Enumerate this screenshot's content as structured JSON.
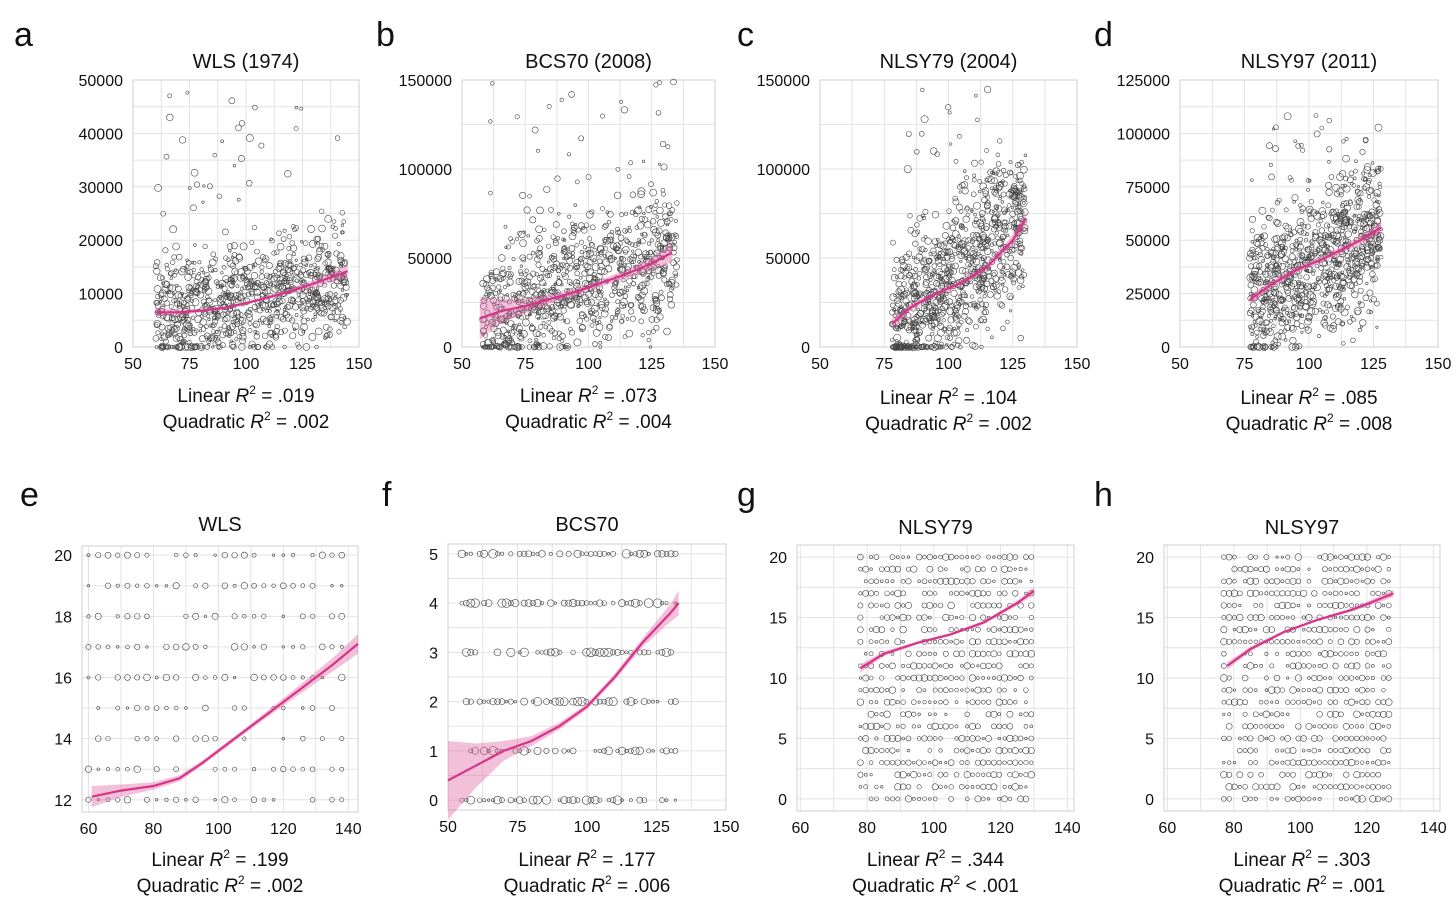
{
  "figure": {
    "panels": [
      {
        "letter": "a",
        "title": "WLS (1974)",
        "linear": {
          "label": "Linear",
          "sym": "R",
          "sup": "2",
          "eq": " = .019"
        },
        "quadratic": {
          "label": "Quadratic",
          "sym": "R",
          "sup": "2",
          "eq": " = .002"
        }
      },
      {
        "letter": "b",
        "title": "BCS70 (2008)",
        "linear": {
          "label": "Linear",
          "sym": "R",
          "sup": "2",
          "eq": " = .073"
        },
        "quadratic": {
          "label": "Quadratic",
          "sym": "R",
          "sup": "2",
          "eq": " = .004"
        }
      },
      {
        "letter": "c",
        "title": "NLSY79 (2004)",
        "linear": {
          "label": "Linear",
          "sym": "R",
          "sup": "2",
          "eq": " = .104"
        },
        "quadratic": {
          "label": "Quadratic",
          "sym": "R",
          "sup": "2",
          "eq": " = .002"
        }
      },
      {
        "letter": "d",
        "title": "NLSY97 (2011)",
        "linear": {
          "label": "Linear",
          "sym": "R",
          "sup": "2",
          "eq": " = .085"
        },
        "quadratic": {
          "label": "Quadratic",
          "sym": "R",
          "sup": "2",
          "eq": " = .008"
        }
      },
      {
        "letter": "e",
        "title": "WLS",
        "linear": {
          "label": "Linear",
          "sym": "R",
          "sup": "2",
          "eq": " = .199"
        },
        "quadratic": {
          "label": "Quadratic",
          "sym": "R",
          "sup": "2",
          "eq": " = .002"
        }
      },
      {
        "letter": "f",
        "title": "BCS70",
        "linear": {
          "label": "Linear",
          "sym": "R",
          "sup": "2",
          "eq": " = .177"
        },
        "quadratic": {
          "label": "Quadratic",
          "sym": "R",
          "sup": "2",
          "eq": " = .006"
        }
      },
      {
        "letter": "g",
        "title": "NLSY79",
        "linear": {
          "label": "Linear",
          "sym": "R",
          "sup": "2",
          "eq": " = .344"
        },
        "quadratic": {
          "label": "Quadratic",
          "sym": "R",
          "sup": "2",
          "eq": " < .001"
        }
      },
      {
        "letter": "h",
        "title": "NLSY97",
        "linear": {
          "label": "Linear",
          "sym": "R",
          "sup": "2",
          "eq": " = .303"
        },
        "quadratic": {
          "label": "Quadratic",
          "sym": "R",
          "sup": "2",
          "eq": " = .001"
        }
      }
    ]
  },
  "colors": {
    "fit_line": "#d6338a",
    "ci_band": "#e36aa6",
    "points": "#444444",
    "grid": "#e3e3e3",
    "frame": "#cfcfcf"
  },
  "chart_data": [
    {
      "type": "scatter",
      "title": "WLS (1974)",
      "grid": true,
      "xlim": [
        50,
        150
      ],
      "ylim": [
        0,
        50000
      ],
      "xticks": [
        50,
        75,
        100,
        125,
        150
      ],
      "yticks": [
        0,
        10000,
        20000,
        30000,
        40000,
        50000
      ],
      "points": {
        "x_range": [
          60,
          145
        ],
        "y_range": [
          0,
          50000
        ],
        "y_center": [
          6000,
          13000
        ],
        "y_spread": 8000
      },
      "fit": {
        "x": [
          60,
          70,
          80,
          90,
          100,
          110,
          120,
          130,
          145
        ],
        "y": [
          6500,
          6500,
          6800,
          7300,
          8200,
          9300,
          10500,
          11900,
          14200
        ],
        "ci": [
          800,
          500,
          350,
          300,
          300,
          350,
          500,
          700,
          1200
        ]
      }
    },
    {
      "type": "scatter",
      "title": "BCS70 (2008)",
      "grid": true,
      "xlim": [
        50,
        150
      ],
      "ylim": [
        0,
        150000
      ],
      "xticks": [
        50,
        75,
        100,
        125,
        150
      ],
      "yticks": [
        0,
        50000,
        100000,
        150000
      ],
      "points": {
        "x_range": [
          58,
          135
        ],
        "y_range": [
          0,
          155000
        ],
        "y_center": [
          15000,
          55000
        ],
        "y_spread": 28000
      },
      "fit": {
        "x": [
          57,
          65,
          75,
          85,
          95,
          105,
          115,
          125,
          133
        ],
        "y": [
          16000,
          20000,
          23000,
          27000,
          31000,
          36000,
          41000,
          47000,
          53000
        ],
        "ci": [
          12000,
          7000,
          4000,
          2500,
          2000,
          2000,
          2500,
          3500,
          5500
        ]
      }
    },
    {
      "type": "scatter",
      "title": "NLSY79 (2004)",
      "grid": true,
      "xlim": [
        50,
        150
      ],
      "ylim": [
        0,
        150000
      ],
      "xticks": [
        50,
        75,
        100,
        125,
        150
      ],
      "yticks": [
        0,
        50000,
        100000,
        150000
      ],
      "points": {
        "x_range": [
          78,
          130
        ],
        "y_range": [
          0,
          145000
        ],
        "y_center": [
          12000,
          72000
        ],
        "y_spread": 32000
      },
      "fit": {
        "x": [
          78,
          85,
          95,
          105,
          115,
          125,
          130
        ],
        "y": [
          13000,
          22000,
          30000,
          36000,
          45000,
          60000,
          72000
        ],
        "ci": [
          3000,
          2000,
          1500,
          1500,
          2000,
          3000,
          4000
        ]
      }
    },
    {
      "type": "scatter",
      "title": "NLSY97 (2011)",
      "grid": true,
      "xlim": [
        50,
        150
      ],
      "ylim": [
        0,
        125000
      ],
      "xticks": [
        50,
        75,
        100,
        125,
        150
      ],
      "yticks": [
        0,
        25000,
        50000,
        75000,
        100000,
        125000
      ],
      "points": {
        "x_range": [
          77,
          128
        ],
        "y_range": [
          0,
          110000
        ],
        "y_center": [
          22000,
          56000
        ],
        "y_spread": 26000
      },
      "fit": {
        "x": [
          77,
          85,
          95,
          105,
          115,
          120,
          128
        ],
        "y": [
          22000,
          29000,
          36000,
          41000,
          47000,
          50000,
          56000
        ],
        "ci": [
          2500,
          1800,
          1500,
          1500,
          1800,
          2200,
          3000
        ]
      }
    },
    {
      "type": "scatter",
      "title": "WLS",
      "grid": true,
      "xlim": [
        58,
        143
      ],
      "ylim": [
        11.6,
        20.3
      ],
      "xticks": [
        60,
        80,
        100,
        120,
        140
      ],
      "yticks": [
        12,
        14,
        16,
        18,
        20
      ],
      "points": {
        "x_range": [
          60,
          140
        ],
        "levels": [
          12,
          13,
          14,
          15,
          16,
          17,
          18,
          19,
          20
        ]
      },
      "fit": {
        "x": [
          61,
          70,
          80,
          88,
          95,
          105,
          115,
          125,
          135,
          143
        ],
        "y": [
          12.1,
          12.3,
          12.45,
          12.7,
          13.2,
          14.0,
          14.8,
          15.6,
          16.4,
          17.1
        ],
        "ci": [
          0.35,
          0.2,
          0.12,
          0.1,
          0.08,
          0.08,
          0.1,
          0.15,
          0.22,
          0.32
        ]
      }
    },
    {
      "type": "scatter",
      "title": "BCS70",
      "grid": true,
      "xlim": [
        50,
        150
      ],
      "ylim": [
        -0.2,
        5.2
      ],
      "xticks": [
        50,
        75,
        100,
        125,
        150
      ],
      "yticks": [
        0,
        1,
        2,
        3,
        4,
        5
      ],
      "points": {
        "x_range": [
          55,
          132
        ],
        "levels": [
          0,
          1,
          2,
          3,
          4,
          5
        ]
      },
      "fit": {
        "x": [
          50,
          60,
          70,
          80,
          90,
          100,
          110,
          120,
          130,
          133
        ],
        "y": [
          0.4,
          0.7,
          1.0,
          1.2,
          1.5,
          1.9,
          2.5,
          3.2,
          3.8,
          4.0
        ],
        "ci": [
          0.8,
          0.45,
          0.2,
          0.1,
          0.07,
          0.06,
          0.07,
          0.09,
          0.18,
          0.25
        ]
      }
    },
    {
      "type": "scatter",
      "title": "NLSY79",
      "grid": true,
      "xlim": [
        59,
        142
      ],
      "ylim": [
        -1,
        21
      ],
      "xticks": [
        60,
        80,
        100,
        120,
        140
      ],
      "yticks": [
        0,
        5,
        10,
        15,
        20
      ],
      "points": {
        "x_range": [
          78,
          130
        ],
        "levels": [
          0,
          1,
          2,
          3,
          4,
          5,
          6,
          7,
          8,
          9,
          10,
          11,
          12,
          13,
          14,
          15,
          16,
          17,
          18,
          19,
          20
        ]
      },
      "fit": {
        "x": [
          78,
          85,
          95,
          105,
          115,
          125,
          130
        ],
        "y": [
          10.8,
          12.0,
          12.9,
          13.6,
          14.6,
          16.2,
          17.2
        ],
        "ci": [
          0.35,
          0.2,
          0.12,
          0.12,
          0.15,
          0.2,
          0.3
        ]
      }
    },
    {
      "type": "scatter",
      "title": "NLSY97",
      "grid": true,
      "xlim": [
        59,
        142
      ],
      "ylim": [
        -1,
        21
      ],
      "xticks": [
        60,
        80,
        100,
        120,
        140
      ],
      "yticks": [
        0,
        5,
        10,
        15,
        20
      ],
      "points": {
        "x_range": [
          77,
          128
        ],
        "levels": [
          0,
          1,
          2,
          3,
          4,
          5,
          6,
          7,
          8,
          9,
          10,
          11,
          12,
          13,
          14,
          15,
          16,
          17,
          18,
          19,
          20
        ]
      },
      "fit": {
        "x": [
          78,
          85,
          95,
          105,
          115,
          120,
          128
        ],
        "y": [
          11.0,
          12.4,
          13.8,
          14.8,
          15.6,
          16.1,
          17.0
        ],
        "ci": [
          0.3,
          0.18,
          0.12,
          0.12,
          0.15,
          0.2,
          0.3
        ]
      }
    }
  ]
}
